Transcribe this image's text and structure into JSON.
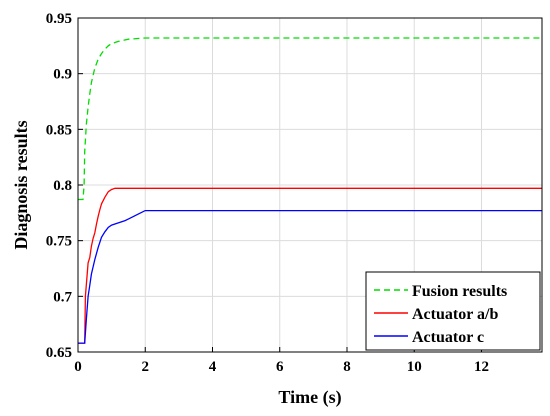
{
  "chart_data": {
    "type": "line",
    "title": "",
    "xlabel": "Time (s)",
    "ylabel": "Diagnosis results",
    "xlim": [
      0,
      13.8
    ],
    "ylim": [
      0.65,
      0.95
    ],
    "xticks": [
      0,
      2,
      4,
      6,
      8,
      10,
      12
    ],
    "xtick_labels": [
      "0",
      "2",
      "4",
      "6",
      "8",
      "10",
      "12"
    ],
    "yticks": [
      0.65,
      0.7,
      0.75,
      0.8,
      0.85,
      0.9,
      0.95
    ],
    "ytick_labels": [
      "0.65",
      "0.7",
      "0.75",
      "0.8",
      "0.85",
      "0.9",
      "0.95"
    ],
    "grid": true,
    "legend_position": "bottom-right",
    "series": [
      {
        "name": "Fusion results",
        "color": "#00dd00",
        "style": "dashed",
        "x": [
          0,
          0.15,
          0.18,
          0.2,
          0.25,
          0.3,
          0.35,
          0.4,
          0.5,
          0.6,
          0.7,
          0.8,
          0.9,
          1.0,
          1.2,
          1.5,
          2.0,
          13.8
        ],
        "y": [
          0.787,
          0.787,
          0.8,
          0.83,
          0.855,
          0.87,
          0.882,
          0.892,
          0.905,
          0.913,
          0.918,
          0.922,
          0.925,
          0.927,
          0.929,
          0.931,
          0.932,
          0.932
        ]
      },
      {
        "name": "Actuator a/b",
        "color": "#ff0000",
        "style": "solid",
        "x": [
          0,
          0.2,
          0.22,
          0.3,
          0.35,
          0.4,
          0.45,
          0.5,
          0.55,
          0.6,
          0.65,
          0.7,
          0.8,
          0.9,
          1.0,
          1.1,
          1.2,
          2.0,
          13.8
        ],
        "y": [
          0.658,
          0.658,
          0.7,
          0.73,
          0.735,
          0.745,
          0.752,
          0.757,
          0.765,
          0.772,
          0.778,
          0.783,
          0.789,
          0.794,
          0.796,
          0.797,
          0.797,
          0.797,
          0.797
        ]
      },
      {
        "name": "Actuator c",
        "color": "#0000ff",
        "style": "solid",
        "x": [
          0,
          0.2,
          0.25,
          0.3,
          0.35,
          0.4,
          0.5,
          0.6,
          0.7,
          0.8,
          0.9,
          1.0,
          1.2,
          1.4,
          1.6,
          1.8,
          2.0,
          13.8
        ],
        "y": [
          0.658,
          0.658,
          0.68,
          0.7,
          0.71,
          0.72,
          0.733,
          0.744,
          0.753,
          0.758,
          0.762,
          0.764,
          0.766,
          0.768,
          0.771,
          0.774,
          0.777,
          0.777
        ]
      }
    ]
  }
}
